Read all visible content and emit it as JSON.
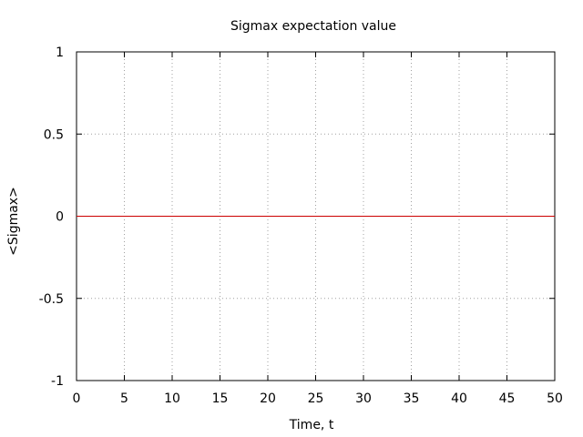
{
  "chart_data": {
    "type": "line",
    "title": "Sigmax expectation value",
    "xlabel": "Time, t",
    "ylabel": "<Sigmax>",
    "xlim": [
      0,
      50
    ],
    "ylim": [
      -1,
      1
    ],
    "x_ticks": [
      0,
      5,
      10,
      15,
      20,
      25,
      30,
      35,
      40,
      45,
      50
    ],
    "y_ticks": [
      -1,
      -0.5,
      0,
      0.5,
      1
    ],
    "x_tick_labels": [
      "0",
      "5",
      "10",
      "15",
      "20",
      "25",
      "30",
      "35",
      "40",
      "45",
      "50"
    ],
    "y_tick_labels": [
      "-1",
      "-0.5",
      "0",
      "0.5",
      "1"
    ],
    "grid": true,
    "series": [
      {
        "color": "#cc0000",
        "x": [
          0,
          50
        ],
        "y": [
          0,
          0
        ]
      }
    ]
  }
}
